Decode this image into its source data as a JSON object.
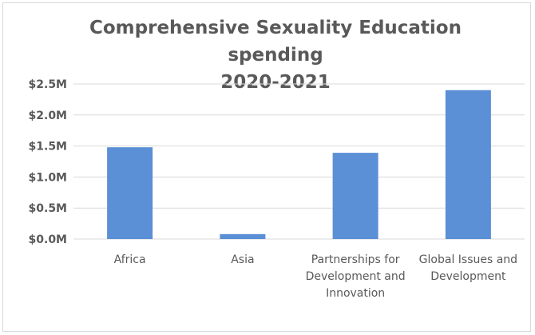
{
  "chart_data": {
    "type": "bar",
    "title_lines": [
      "Comprehensive Sexuality Education spending",
      "2020-2021"
    ],
    "categories": [
      [
        "Africa"
      ],
      [
        "Asia"
      ],
      [
        "Partnerships for",
        "Development and",
        "Innovation"
      ],
      [
        "Global Issues and",
        "Development"
      ]
    ],
    "values": [
      1.48,
      0.08,
      1.39,
      2.4
    ],
    "value_unit": "millions USD",
    "y_ticks": [
      "$0.0M",
      "$0.5M",
      "$1.0M",
      "$1.5M",
      "$2.0M",
      "$2.5M"
    ],
    "ylim": [
      0,
      2.5
    ],
    "grid": true,
    "legend": "none",
    "bar_color": "#5b8fd6",
    "grid_color": "#d9d9d9",
    "text_color": "#595959"
  }
}
